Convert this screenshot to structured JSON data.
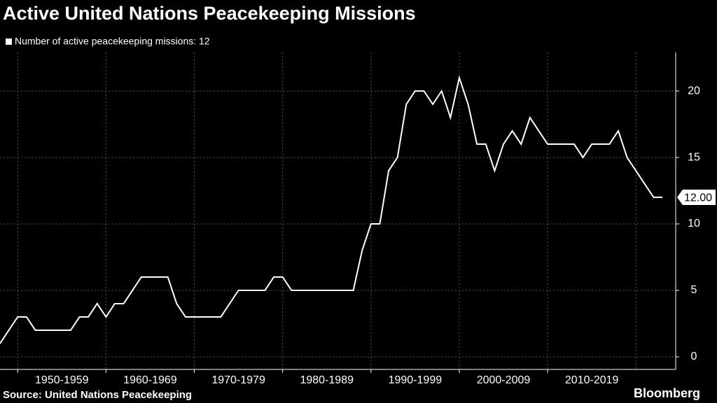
{
  "chart_data": {
    "type": "line",
    "title": "Active United Nations Peacekeeping Missions",
    "x": [
      1948,
      1949,
      1950,
      1951,
      1952,
      1953,
      1954,
      1955,
      1956,
      1957,
      1958,
      1959,
      1960,
      1961,
      1962,
      1963,
      1964,
      1965,
      1966,
      1967,
      1968,
      1969,
      1970,
      1971,
      1972,
      1973,
      1974,
      1975,
      1976,
      1977,
      1978,
      1979,
      1980,
      1981,
      1982,
      1983,
      1984,
      1985,
      1986,
      1987,
      1988,
      1989,
      1990,
      1991,
      1992,
      1993,
      1994,
      1995,
      1996,
      1997,
      1998,
      1999,
      2000,
      2001,
      2002,
      2003,
      2004,
      2005,
      2006,
      2007,
      2008,
      2009,
      2010,
      2011,
      2012,
      2013,
      2014,
      2015,
      2016,
      2017,
      2018,
      2019,
      2020,
      2021,
      2022,
      2023
    ],
    "series": [
      {
        "name": "Number of active peacekeeping missions: 12",
        "color": "#ffffff",
        "values": [
          1,
          2,
          3,
          3,
          2,
          2,
          2,
          2,
          2,
          3,
          3,
          4,
          3,
          4,
          4,
          5,
          6,
          6,
          6,
          6,
          4,
          3,
          3,
          3,
          3,
          3,
          4,
          5,
          5,
          5,
          5,
          6,
          6,
          5,
          5,
          5,
          5,
          5,
          5,
          5,
          5,
          8,
          10,
          10,
          14,
          15,
          19,
          20,
          20,
          19,
          20,
          18,
          21,
          19,
          16,
          16,
          14,
          16,
          17,
          16,
          18,
          17,
          16,
          16,
          16,
          16,
          15,
          16,
          16,
          16,
          17,
          15,
          14,
          13,
          12,
          12
        ]
      }
    ],
    "last_value_label": "12.00",
    "xlim": [
      1948,
      2024.5
    ],
    "xticks": [
      {
        "value": 1950,
        "label": "1950-1959"
      },
      {
        "value": 1960,
        "label": "1960-1969"
      },
      {
        "value": 1970,
        "label": "1970-1979"
      },
      {
        "value": 1980,
        "label": "1980-1989"
      },
      {
        "value": 1990,
        "label": "1990-1999"
      },
      {
        "value": 2000,
        "label": "2000-2009"
      },
      {
        "value": 2010,
        "label": "2010-2019"
      }
    ],
    "ylim": [
      -0.95,
      22.9
    ],
    "yticks": [
      0,
      5,
      10,
      15,
      20
    ],
    "grid": true,
    "source": "Source: United Nations Peacekeeping",
    "brand": "Bloomberg"
  }
}
